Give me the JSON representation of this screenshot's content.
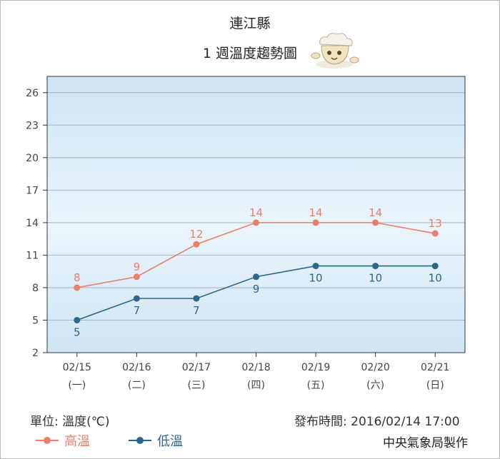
{
  "header": {
    "county": "連江縣",
    "subtitle": "1 週溫度趨勢圖"
  },
  "footer": {
    "unit_label": "單位: 溫度(℃)",
    "publish_time": "發布時間: 2016/02/14 17:00",
    "producer": "中央氣象局製作"
  },
  "chart_data": {
    "type": "line",
    "title": "連江縣 1 週溫度趨勢圖",
    "x": [
      "02/15",
      "02/16",
      "02/17",
      "02/18",
      "02/19",
      "02/20",
      "02/21"
    ],
    "x_sub": [
      "(一)",
      "(二)",
      "(三)",
      "(四)",
      "(五)",
      "(六)",
      "(日)"
    ],
    "y_ticks": [
      2,
      5,
      8,
      11,
      14,
      17,
      20,
      23,
      26
    ],
    "ylim": [
      2,
      27.5
    ],
    "grid": true,
    "legend_position": "bottom-left",
    "series": [
      {
        "name": "高溫",
        "color": "#e8806c",
        "values": [
          8,
          9,
          12,
          14,
          14,
          14,
          13
        ],
        "label_position": "above"
      },
      {
        "name": "低溫",
        "color": "#2c6688",
        "values": [
          5,
          7,
          7,
          9,
          10,
          10,
          10
        ],
        "label_position": "below"
      }
    ]
  }
}
